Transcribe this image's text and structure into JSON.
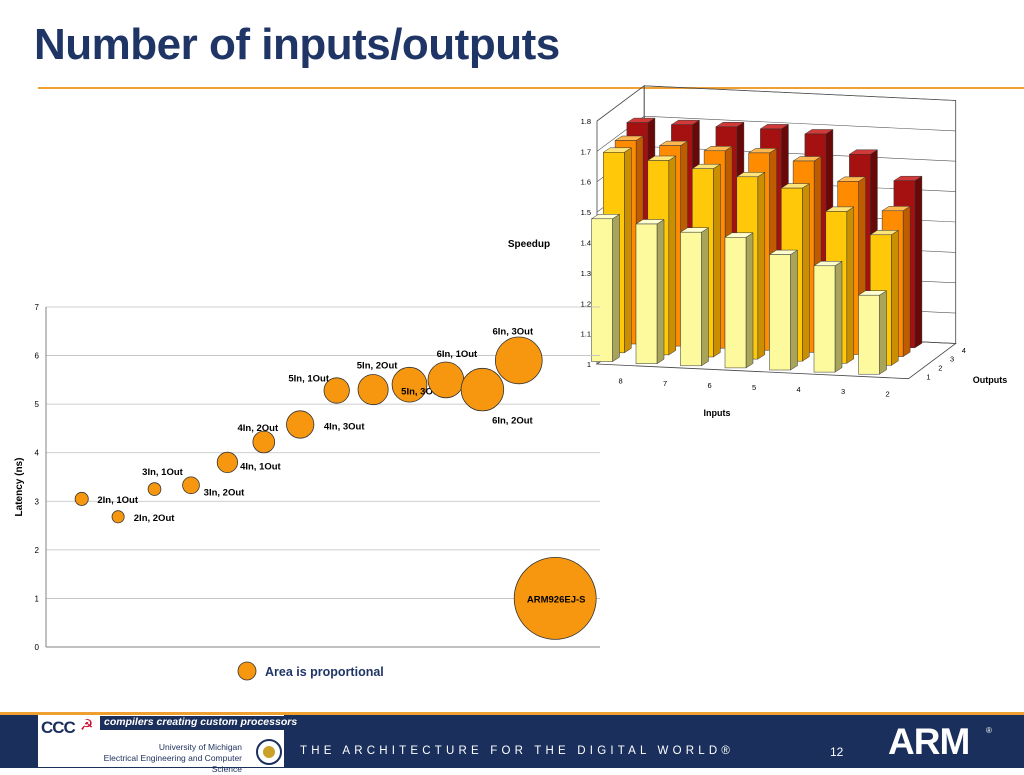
{
  "slide": {
    "title": "Number of inputs/outputs"
  },
  "colors": {
    "title": "#1f3566",
    "accent": "#f0a030",
    "bubble": "#f7970f",
    "footer": "#1b2f5c",
    "bar_row_1": "#fdfa9e",
    "bar_row_2": "#ffc808",
    "bar_row_3": "#ff8c00",
    "bar_row_4": "#a51010"
  },
  "chart_data": [
    {
      "type": "scatter",
      "variant": "bubble",
      "title": "",
      "xlabel": "",
      "ylabel": "Latency (ns)",
      "ylim": [
        0,
        7
      ],
      "yticks": [
        0,
        1,
        2,
        3,
        4,
        5,
        6,
        7
      ],
      "grid": true,
      "legend": {
        "marker": "bubble",
        "text": "Area is proportional",
        "placement": "bottom-center"
      },
      "points": [
        {
          "label": "2In, 1Out",
          "x": 1,
          "y": 3.05,
          "size": 2.3
        },
        {
          "label": "2In, 2Out",
          "x": 2,
          "y": 2.68,
          "size": 2.0
        },
        {
          "label": "3In, 1Out",
          "x": 3,
          "y": 3.25,
          "size": 2.2
        },
        {
          "label": "3In, 2Out",
          "x": 4,
          "y": 3.33,
          "size": 3.7
        },
        {
          "label": "4In, 1Out",
          "x": 5,
          "y": 3.8,
          "size": 5.5
        },
        {
          "label": "4In, 2Out",
          "x": 6,
          "y": 4.22,
          "size": 6.3
        },
        {
          "label": "4In, 3Out",
          "x": 7,
          "y": 4.58,
          "size": 10
        },
        {
          "label": "5In, 1Out",
          "x": 8,
          "y": 5.28,
          "size": 8.5
        },
        {
          "label": "5In, 2Out",
          "x": 9,
          "y": 5.3,
          "size": 12
        },
        {
          "label": "5In, 3Out",
          "x": 10,
          "y": 5.4,
          "size": 16
        },
        {
          "label": "6In, 1Out",
          "x": 11,
          "y": 5.5,
          "size": 17
        },
        {
          "label": "6In, 2Out",
          "x": 12,
          "y": 5.3,
          "size": 24
        },
        {
          "label": "6In, 3Out",
          "x": 13,
          "y": 5.9,
          "size": 29
        },
        {
          "label": "ARM926EJ-S",
          "x": 14,
          "y": 1.0,
          "size": 89
        }
      ]
    },
    {
      "type": "bar",
      "variant": "3d",
      "title": "",
      "xlabel": "Inputs",
      "ylabel": "Speedup",
      "zlabel": "Outputs",
      "ylim": [
        1,
        1.8
      ],
      "yticks": [
        1,
        1.1,
        1.2,
        1.3,
        1.4,
        1.5,
        1.6,
        1.7,
        1.8
      ],
      "categories": [
        "8",
        "7",
        "6",
        "5",
        "4",
        "3",
        "2"
      ],
      "depth_categories": [
        "1",
        "2",
        "3",
        "4"
      ],
      "series": [
        {
          "name": "1",
          "values": [
            1.47,
            1.46,
            1.44,
            1.43,
            1.38,
            1.35,
            1.26
          ]
        },
        {
          "name": "2",
          "values": [
            1.66,
            1.64,
            1.62,
            1.6,
            1.57,
            1.5,
            1.43
          ]
        },
        {
          "name": "3",
          "values": [
            1.67,
            1.66,
            1.65,
            1.65,
            1.63,
            1.57,
            1.48
          ]
        },
        {
          "name": "4",
          "values": [
            1.7,
            1.7,
            1.7,
            1.7,
            1.69,
            1.63,
            1.55
          ]
        }
      ]
    }
  ],
  "footer": {
    "logo_text": "CCC",
    "tagline": "compilers creating custom processors",
    "university": "University of Michigan",
    "department": "Electrical Engineering and Computer Science",
    "banner": "THE ARCHITECTURE FOR THE DIGITAL WORLD®",
    "page_number": "12",
    "arm_logo": "ARM",
    "arm_registered": "®"
  }
}
